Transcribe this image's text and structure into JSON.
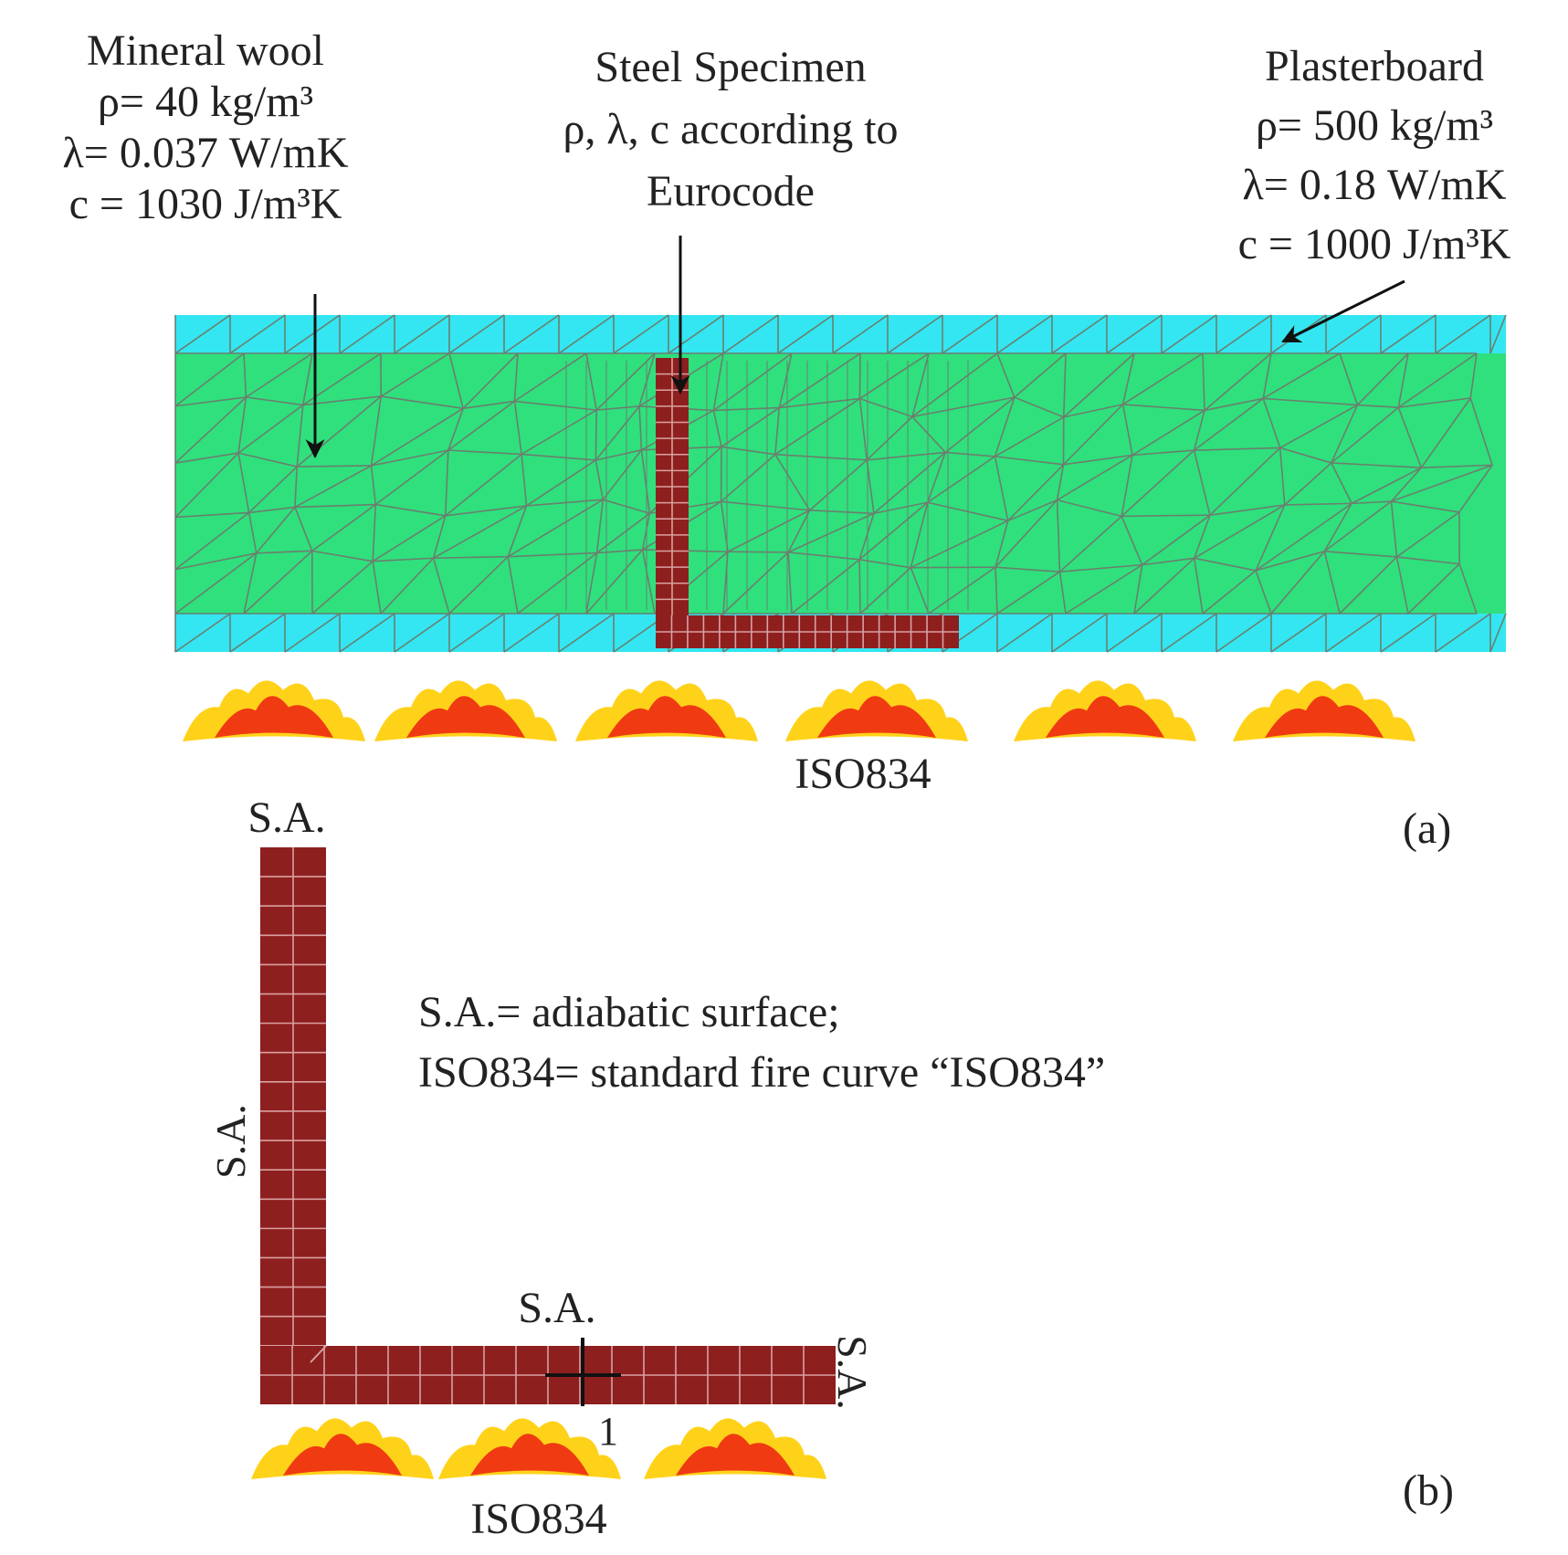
{
  "panel_a": {
    "mineral_wool": {
      "title": "Mineral wool",
      "rho": "ρ= 40 kg/m³",
      "lambda": "λ= 0.037 W/mK",
      "c": "c = 1030 J/m³K"
    },
    "steel": {
      "title": "Steel Specimen",
      "line2": "ρ, λ, c  according  to",
      "line3": "Eurocode"
    },
    "plasterboard": {
      "title": "Plasterboard",
      "rho": "ρ= 500 kg/m³",
      "lambda": "λ= 0.18 W/mK",
      "c": "c = 1000 J/m³K"
    },
    "fire_label": "ISO834",
    "panel_label": "(a)"
  },
  "panel_b": {
    "sa_top": "S.A.",
    "sa_left": "S.A.",
    "sa_mid": "S.A.",
    "sa_right": "S.A.",
    "point_label": "1",
    "fire_label": "ISO834",
    "panel_label": "(b)",
    "legend_line1": "S.A.= adiabatic surface;",
    "legend_line2": "ISO834= standard fire curve “ISO834”"
  },
  "colors": {
    "plasterboard": "#33e6f2",
    "mineral_wool": "#2fe07d",
    "steel": "#8e1f1f",
    "mesh": "#6b7f6e",
    "flame_outer": "#ffd21a",
    "flame_inner": "#f03a12"
  }
}
